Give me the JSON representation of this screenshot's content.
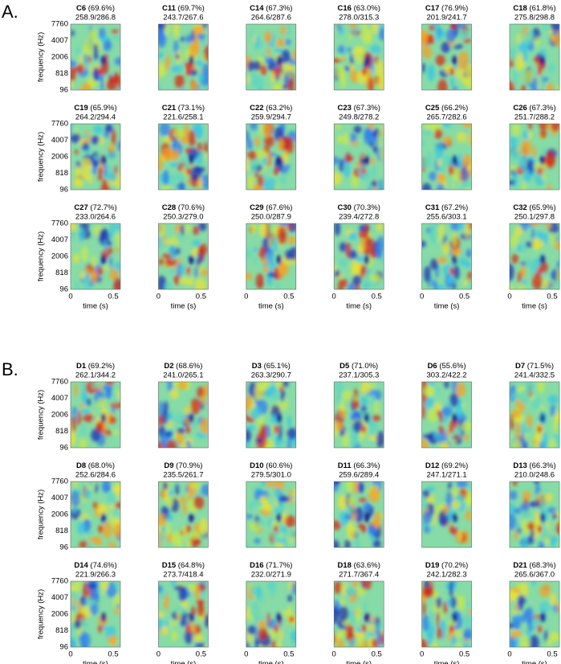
{
  "axes": {
    "y_label": "frequency (Hz)",
    "x_label": "time (s)",
    "y_ticks": [
      "7760",
      "4007",
      "2006",
      "818",
      "96"
    ],
    "x_ticks": [
      "0",
      "0.5"
    ]
  },
  "sections": [
    {
      "label": "A.",
      "panels": [
        {
          "name": "C6",
          "percent": "(69.6%)",
          "stats": "258.9/286.8"
        },
        {
          "name": "C11",
          "percent": "(69.7%)",
          "stats": "243.7/267.6"
        },
        {
          "name": "C14",
          "percent": "(67.3%)",
          "stats": "264.6/287.6"
        },
        {
          "name": "C16",
          "percent": "(63.0%)",
          "stats": "278.0/315.3"
        },
        {
          "name": "C17",
          "percent": "(76.9%)",
          "stats": "201.9/241.7"
        },
        {
          "name": "C18",
          "percent": "(61.8%)",
          "stats": "275.8/298.8"
        },
        {
          "name": "C19",
          "percent": "(65.9%)",
          "stats": "264.2/294.4"
        },
        {
          "name": "C21",
          "percent": "(73.1%)",
          "stats": "221.6/258.1"
        },
        {
          "name": "C22",
          "percent": "(63.2%)",
          "stats": "259.9/294.7"
        },
        {
          "name": "C23",
          "percent": "(67.3%)",
          "stats": "249.8/278.2"
        },
        {
          "name": "C25",
          "percent": "(66.2%)",
          "stats": "265.7/282.6"
        },
        {
          "name": "C26",
          "percent": "(67.3%)",
          "stats": "251.7/288.2"
        },
        {
          "name": "C27",
          "percent": "(72.7%)",
          "stats": "233.0/264.6"
        },
        {
          "name": "C28",
          "percent": "(70.6%)",
          "stats": "250.3/279.0"
        },
        {
          "name": "C29",
          "percent": "(67.6%)",
          "stats": "250.0/287.9"
        },
        {
          "name": "C30",
          "percent": "(70.3%)",
          "stats": "239.4/272.8"
        },
        {
          "name": "C31",
          "percent": "(67.2%)",
          "stats": "255.6/303.1"
        },
        {
          "name": "C32",
          "percent": "(65.9%)",
          "stats": "250.1/297.8"
        }
      ]
    },
    {
      "label": "B.",
      "panels": [
        {
          "name": "D1",
          "percent": "(69.2%)",
          "stats": "262.1/344.2"
        },
        {
          "name": "D2",
          "percent": "(68.6%)",
          "stats": "241.0/265.1"
        },
        {
          "name": "D3",
          "percent": "(65.1%)",
          "stats": "263.3/290.7"
        },
        {
          "name": "D5",
          "percent": "(71.0%)",
          "stats": "237.1/305.3"
        },
        {
          "name": "D6",
          "percent": "(55.6%)",
          "stats": "303.2/422.2"
        },
        {
          "name": "D7",
          "percent": "(71.5%)",
          "stats": "241.4/332.5"
        },
        {
          "name": "D8",
          "percent": "(68.0%)",
          "stats": "252.6/284.6"
        },
        {
          "name": "D9",
          "percent": "(70.9%)",
          "stats": "235.5/261.7"
        },
        {
          "name": "D10",
          "percent": "(60.6%)",
          "stats": "279.5/301.0"
        },
        {
          "name": "D11",
          "percent": "(66.3%)",
          "stats": "259.6/289.4"
        },
        {
          "name": "D12",
          "percent": "(69.2%)",
          "stats": "247.1/271.1"
        },
        {
          "name": "D13",
          "percent": "(66.3%)",
          "stats": "210.0/248.6"
        },
        {
          "name": "D14",
          "percent": "(74.6%)",
          "stats": "221.9/266.3"
        },
        {
          "name": "D15",
          "percent": "(64.8%)",
          "stats": "273.7/418.4"
        },
        {
          "name": "D16",
          "percent": "(71.7%)",
          "stats": "232.0/271.9"
        },
        {
          "name": "D18",
          "percent": "(63.6%)",
          "stats": "271.7/367.4"
        },
        {
          "name": "D19",
          "percent": "(70.2%)",
          "stats": "242.1/282.3"
        },
        {
          "name": "D21",
          "percent": "(68.3%)",
          "stats": "265.6/367.0"
        }
      ]
    }
  ]
}
